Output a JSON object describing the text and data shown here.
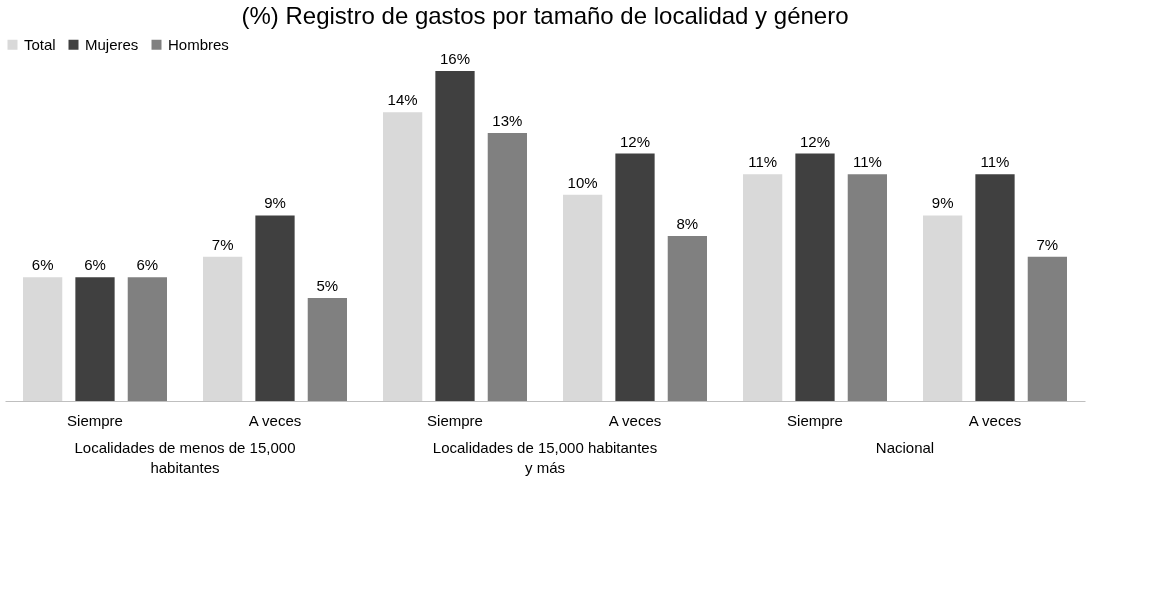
{
  "chart_data": {
    "type": "bar",
    "title": "(%) Registro de gastos por tamaño de localidad y género",
    "categories": [
      "Siempre",
      "A veces",
      "Siempre",
      "A veces",
      "Siempre",
      "A veces"
    ],
    "series": [
      {
        "name": "Total",
        "color": "#d9d9d9",
        "values": [
          6,
          7,
          14,
          10,
          11,
          9
        ],
        "value_labels": [
          "6%",
          "7%",
          "14%",
          "10%",
          "11%",
          "9%"
        ]
      },
      {
        "name": "Mujeres",
        "color": "#404040",
        "values": [
          6,
          9,
          16,
          12,
          12,
          11
        ],
        "value_labels": [
          "6%",
          "9%",
          "16%",
          "12%",
          "12%",
          "11%"
        ]
      },
      {
        "name": "Hombres",
        "color": "#808080",
        "values": [
          6,
          5,
          13,
          8,
          11,
          7
        ],
        "value_labels": [
          "6%",
          "5%",
          "13%",
          "8%",
          "11%",
          "7%"
        ]
      }
    ],
    "annotations": [
      "Localidades de menos de 15,000 habitantes",
      "Localidades de 15,000 habitantes y más",
      "Nacional"
    ],
    "legend": "top",
    "grid": false
  }
}
